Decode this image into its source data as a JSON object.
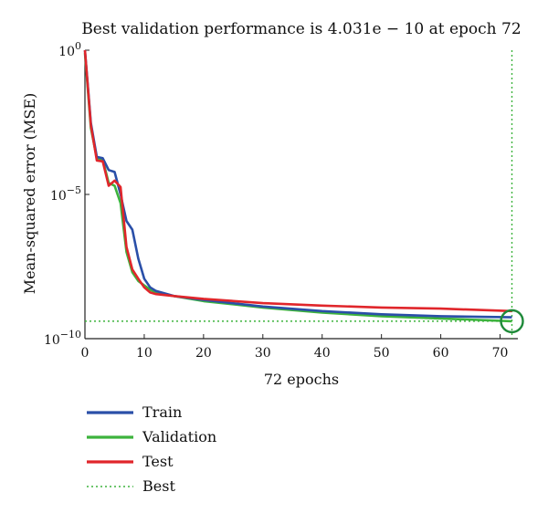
{
  "chart_data": {
    "type": "line",
    "title": "Best validation performance is 4.031e − 10 at epoch 72",
    "xlabel": "72 epochs",
    "ylabel": "Mean-squared error (MSE)",
    "yscale": "log",
    "xlim": [
      0,
      73
    ],
    "ylim": [
      1e-10,
      1
    ],
    "x_ticks": [
      0,
      10,
      20,
      30,
      40,
      50,
      60,
      70
    ],
    "y_ticks": [
      {
        "base": "10",
        "exp": "0"
      },
      {
        "base": "10",
        "exp": "−5"
      },
      {
        "base": "10",
        "exp": "−10"
      }
    ],
    "grid": false,
    "legend_position": "bottom-left",
    "series": [
      {
        "name": "Train",
        "color": "#2a4fa8",
        "style": "solid",
        "points": [
          [
            0,
            1.0
          ],
          [
            1,
            0.003
          ],
          [
            2,
            0.0002
          ],
          [
            3,
            0.00018
          ],
          [
            4,
            7e-05
          ],
          [
            5,
            6e-05
          ],
          [
            6,
            1e-05
          ],
          [
            7,
            1.2e-06
          ],
          [
            8,
            6e-07
          ],
          [
            9,
            6e-08
          ],
          [
            10,
            1.2e-08
          ],
          [
            11,
            6e-09
          ],
          [
            12,
            4.5e-09
          ],
          [
            15,
            3e-09
          ],
          [
            20,
            2.2e-09
          ],
          [
            30,
            1.3e-09
          ],
          [
            40,
            9e-10
          ],
          [
            50,
            7e-10
          ],
          [
            60,
            6e-10
          ],
          [
            72,
            5.5e-10
          ]
        ]
      },
      {
        "name": "Validation",
        "color": "#3db33d",
        "style": "solid",
        "points": [
          [
            0,
            0.8
          ],
          [
            1,
            0.002
          ],
          [
            2,
            0.00018
          ],
          [
            3,
            0.00016
          ],
          [
            4,
            2.5e-05
          ],
          [
            5,
            2e-05
          ],
          [
            6,
            5e-06
          ],
          [
            7,
            1e-07
          ],
          [
            8,
            2e-08
          ],
          [
            9,
            1e-08
          ],
          [
            10,
            7e-09
          ],
          [
            11,
            5e-09
          ],
          [
            12,
            4e-09
          ],
          [
            15,
            3e-09
          ],
          [
            20,
            2e-09
          ],
          [
            30,
            1.2e-09
          ],
          [
            40,
            8e-10
          ],
          [
            50,
            6e-10
          ],
          [
            60,
            5e-10
          ],
          [
            72,
            4.031e-10
          ]
        ]
      },
      {
        "name": "Test",
        "color": "#e0262b",
        "style": "solid",
        "points": [
          [
            0,
            1.0
          ],
          [
            1,
            0.0025
          ],
          [
            2,
            0.00015
          ],
          [
            3,
            0.00014
          ],
          [
            4,
            2e-05
          ],
          [
            5,
            3e-05
          ],
          [
            6,
            1.8e-05
          ],
          [
            7,
            1.5e-07
          ],
          [
            8,
            2.5e-08
          ],
          [
            9,
            1.2e-08
          ],
          [
            10,
            6e-09
          ],
          [
            11,
            4e-09
          ],
          [
            12,
            3.5e-09
          ],
          [
            15,
            3e-09
          ],
          [
            20,
            2.4e-09
          ],
          [
            30,
            1.7e-09
          ],
          [
            40,
            1.4e-09
          ],
          [
            50,
            1.2e-09
          ],
          [
            60,
            1.1e-09
          ],
          [
            72,
            9e-10
          ]
        ]
      },
      {
        "name": "Best",
        "color": "#3db33d",
        "style": "dotted"
      }
    ],
    "best": {
      "epoch": 72,
      "value": 4.031e-10
    }
  }
}
